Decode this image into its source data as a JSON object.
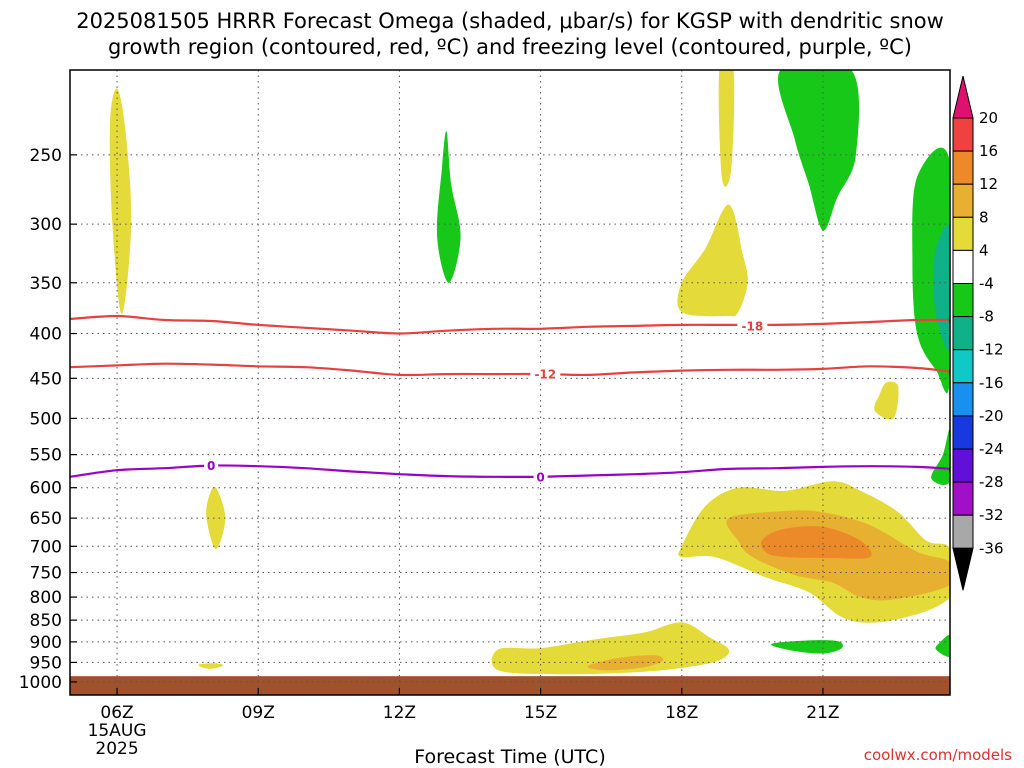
{
  "chart_data": {
    "type": "heatmap",
    "title_line1": "2025081505 HRRR Forecast Omega (shaded, μbar/s) for KGSP with dendritic snow",
    "title_line2": "growth region (contoured, red, ºC) and freezing level (contoured, purple, ºC)",
    "xlabel": "Forecast Time (UTC)",
    "credit": "coolwx.com/models",
    "x_range": [
      5,
      23.7
    ],
    "y_range": [
      200,
      1035
    ],
    "x_ticks": [
      {
        "x": 6,
        "label": "06Z",
        "sub1": "15AUG",
        "sub2": "2025"
      },
      {
        "x": 9,
        "label": "09Z"
      },
      {
        "x": 12,
        "label": "12Z"
      },
      {
        "x": 15,
        "label": "15Z"
      },
      {
        "x": 18,
        "label": "18Z"
      },
      {
        "x": 21,
        "label": "21Z"
      }
    ],
    "y_ticks": [
      {
        "p": 250,
        "label": "250"
      },
      {
        "p": 300,
        "label": "300"
      },
      {
        "p": 350,
        "label": "350"
      },
      {
        "p": 400,
        "label": "400"
      },
      {
        "p": 450,
        "label": "450"
      },
      {
        "p": 500,
        "label": "500"
      },
      {
        "p": 550,
        "label": "550"
      },
      {
        "p": 600,
        "label": "600"
      },
      {
        "p": 650,
        "label": "650"
      },
      {
        "p": 700,
        "label": "700"
      },
      {
        "p": 750,
        "label": "750"
      },
      {
        "p": 800,
        "label": "800"
      },
      {
        "p": 850,
        "label": "850"
      },
      {
        "p": 900,
        "label": "900"
      },
      {
        "p": 950,
        "label": "950"
      },
      {
        "p": 1000,
        "label": "1000"
      }
    ],
    "grid": true,
    "ground_level_p": 985,
    "colors": {
      "ground": "#a0522d",
      "dgz": "#e84040",
      "freezing": "#9a00c8",
      "yellow": "#e4da3a",
      "orange_light": "#e8b030",
      "orange": "#ec8a2a",
      "green": "#18c818"
    },
    "colorbar": {
      "levels": [
        "20",
        "16",
        "12",
        "8",
        "4",
        "-4",
        "-8",
        "-12",
        "-16",
        "-20",
        "-24",
        "-28",
        "-32",
        "-36"
      ],
      "colors": [
        "#e01070",
        "#f04040",
        "#ec8a2a",
        "#e8b030",
        "#e4da3a",
        "#ffffff",
        "#18c818",
        "#10b088",
        "#10c8c8",
        "#1890f0",
        "#1838e0",
        "#6010d8",
        "#a010c8",
        "#a8a8a8",
        "#000000"
      ]
    },
    "contours": [
      {
        "name": "dgz-minus18",
        "label": "-18",
        "color": "#e84040",
        "label_at": [
          19.5,
          392
        ],
        "points": [
          [
            5,
            385
          ],
          [
            6,
            382
          ],
          [
            7,
            386
          ],
          [
            8,
            387
          ],
          [
            9,
            391
          ],
          [
            10,
            394
          ],
          [
            11,
            397
          ],
          [
            12,
            400
          ],
          [
            13,
            397
          ],
          [
            14,
            395
          ],
          [
            15,
            395
          ],
          [
            16,
            393
          ],
          [
            17,
            392
          ],
          [
            18,
            391
          ],
          [
            19,
            391
          ],
          [
            20,
            391
          ],
          [
            21,
            390
          ],
          [
            22,
            388
          ],
          [
            23,
            386
          ],
          [
            23.7,
            386
          ]
        ]
      },
      {
        "name": "dgz-minus12",
        "label": "-12",
        "color": "#e84040",
        "label_at": [
          15.1,
          445
        ],
        "points": [
          [
            5,
            437
          ],
          [
            6,
            435
          ],
          [
            7,
            433
          ],
          [
            8,
            434
          ],
          [
            9,
            436
          ],
          [
            10,
            437
          ],
          [
            11,
            441
          ],
          [
            12,
            446
          ],
          [
            13,
            445
          ],
          [
            14,
            445
          ],
          [
            15,
            445
          ],
          [
            16,
            446
          ],
          [
            17,
            443
          ],
          [
            18,
            441
          ],
          [
            19,
            440
          ],
          [
            20,
            440
          ],
          [
            21,
            439
          ],
          [
            22,
            436
          ],
          [
            23,
            438
          ],
          [
            23.7,
            442
          ]
        ]
      },
      {
        "name": "freezing-level",
        "label": "0",
        "color": "#9a00c8",
        "label_at": [
          [
            8.0,
            566
          ],
          [
            15.0,
            583
          ]
        ],
        "points": [
          [
            5,
            583
          ],
          [
            6,
            573
          ],
          [
            7,
            570
          ],
          [
            8,
            566
          ],
          [
            9,
            567
          ],
          [
            10,
            570
          ],
          [
            11,
            575
          ],
          [
            12,
            579
          ],
          [
            13,
            582
          ],
          [
            14,
            583
          ],
          [
            15,
            583
          ],
          [
            16,
            581
          ],
          [
            17,
            579
          ],
          [
            18,
            576
          ],
          [
            19,
            571
          ],
          [
            20,
            570
          ],
          [
            21,
            568
          ],
          [
            22,
            567
          ],
          [
            23,
            568
          ],
          [
            23.7,
            571
          ]
        ]
      }
    ],
    "shaded_regions": [
      {
        "name": "yellow-upper-06z",
        "value": "4 to 8",
        "fill": "#e4da3a",
        "points": [
          [
            6.0,
            210
          ],
          [
            6.18,
            235
          ],
          [
            6.3,
            300
          ],
          [
            6.1,
            380
          ],
          [
            5.9,
            300
          ],
          [
            5.85,
            230
          ]
        ]
      },
      {
        "name": "green-upper-13z",
        "value": "-4 to -8",
        "fill": "#18c818",
        "points": [
          [
            13.0,
            235
          ],
          [
            13.1,
            270
          ],
          [
            13.3,
            310
          ],
          [
            13.05,
            350
          ],
          [
            12.8,
            310
          ],
          [
            12.9,
            260
          ]
        ]
      },
      {
        "name": "yellow-upper-19z",
        "value": "4 to 8",
        "fill": "#e4da3a",
        "points": [
          [
            18.8,
            200
          ],
          [
            19.1,
            200
          ],
          [
            19.05,
            260
          ],
          [
            18.85,
            265
          ]
        ]
      },
      {
        "name": "yellow-mid-19z",
        "value": "4 to 8",
        "fill": "#e4da3a",
        "points": [
          [
            19.0,
            285
          ],
          [
            19.3,
            325
          ],
          [
            19.4,
            350
          ],
          [
            19.2,
            378
          ],
          [
            18.95,
            382
          ],
          [
            18.0,
            378
          ],
          [
            18.0,
            350
          ],
          [
            18.5,
            320
          ]
        ]
      },
      {
        "name": "green-upper-20z",
        "value": "-4 to -8",
        "fill": "#18c818",
        "points": [
          [
            20.1,
            200
          ],
          [
            21.6,
            200
          ],
          [
            21.7,
            250
          ],
          [
            21.3,
            280
          ],
          [
            21.0,
            305
          ],
          [
            20.7,
            270
          ],
          [
            20.4,
            240
          ]
        ]
      },
      {
        "name": "green-right-edge",
        "value": "-4 to -8",
        "fill": "#18c818",
        "points": [
          [
            23.0,
            265
          ],
          [
            23.7,
            255
          ],
          [
            23.7,
            450
          ],
          [
            23.4,
            440
          ],
          [
            23.0,
            400
          ],
          [
            22.9,
            330
          ]
        ]
      },
      {
        "name": "teal-right-edge",
        "value": "-8 to -12",
        "fill": "#10b088",
        "points": [
          [
            23.4,
            320
          ],
          [
            23.7,
            305
          ],
          [
            23.7,
            410
          ],
          [
            23.5,
            400
          ],
          [
            23.35,
            360
          ]
        ]
      },
      {
        "name": "yellow-500-22z",
        "value": "4 to 8",
        "fill": "#e4da3a",
        "points": [
          [
            22.35,
            455
          ],
          [
            22.6,
            460
          ],
          [
            22.5,
            500
          ],
          [
            22.1,
            490
          ],
          [
            22.2,
            470
          ]
        ]
      },
      {
        "name": "green-mid-right",
        "value": "-4 to -8",
        "fill": "#18c818",
        "points": [
          [
            23.7,
            515
          ],
          [
            23.7,
            590
          ],
          [
            23.3,
            585
          ],
          [
            23.55,
            550
          ]
        ]
      },
      {
        "name": "yellow-650-08z",
        "value": "4 to 8",
        "fill": "#e4da3a",
        "points": [
          [
            8.1,
            600
          ],
          [
            8.3,
            650
          ],
          [
            8.1,
            705
          ],
          [
            7.9,
            650
          ],
          [
            7.95,
            615
          ]
        ]
      },
      {
        "name": "yellow-lowmid-right",
        "value": "4 to 8",
        "fill": "#e4da3a",
        "points": [
          [
            18.0,
            700
          ],
          [
            18.5,
            630
          ],
          [
            19.2,
            600
          ],
          [
            20.2,
            605
          ],
          [
            21.2,
            590
          ],
          [
            21.8,
            605
          ],
          [
            22.6,
            640
          ],
          [
            23.2,
            690
          ],
          [
            23.7,
            705
          ],
          [
            23.7,
            800
          ],
          [
            22.5,
            850
          ],
          [
            21.5,
            848
          ],
          [
            20.7,
            790
          ],
          [
            19.8,
            760
          ],
          [
            18.7,
            720
          ],
          [
            18.0,
            720
          ]
        ]
      },
      {
        "name": "orange-light-lowmid",
        "value": "8 to 12",
        "fill": "#e8b030",
        "points": [
          [
            19.0,
            650
          ],
          [
            20.2,
            638
          ],
          [
            21.0,
            640
          ],
          [
            22.0,
            662
          ],
          [
            23.0,
            710
          ],
          [
            23.7,
            730
          ],
          [
            23.7,
            775
          ],
          [
            22.5,
            805
          ],
          [
            21.8,
            800
          ],
          [
            21.2,
            770
          ],
          [
            20.4,
            755
          ],
          [
            19.5,
            720
          ],
          [
            19.2,
            690
          ]
        ]
      },
      {
        "name": "orange-core",
        "value": "12 to 16",
        "fill": "#ec8a2a",
        "points": [
          [
            19.7,
            690
          ],
          [
            20.1,
            670
          ],
          [
            21.0,
            665
          ],
          [
            21.8,
            690
          ],
          [
            22.0,
            720
          ],
          [
            21.2,
            722
          ],
          [
            20.2,
            720
          ],
          [
            19.8,
            712
          ]
        ]
      },
      {
        "name": "yellow-low-15z",
        "value": "4 to 8",
        "fill": "#e4da3a",
        "points": [
          [
            14.1,
            918
          ],
          [
            15.0,
            915
          ],
          [
            16.1,
            895
          ],
          [
            17.2,
            878
          ],
          [
            18.0,
            855
          ],
          [
            18.6,
            890
          ],
          [
            19.0,
            918
          ],
          [
            18.8,
            945
          ],
          [
            18.1,
            962
          ],
          [
            17.0,
            975
          ],
          [
            15.4,
            980
          ],
          [
            14.1,
            970
          ]
        ]
      },
      {
        "name": "orange-light-low-17z",
        "value": "8 to 12",
        "fill": "#e8b030",
        "points": [
          [
            16.0,
            960
          ],
          [
            16.6,
            940
          ],
          [
            17.4,
            932
          ],
          [
            17.6,
            945
          ],
          [
            17.2,
            962
          ],
          [
            16.4,
            970
          ]
        ]
      },
      {
        "name": "green-900-21z",
        "value": "-4 to -8",
        "fill": "#18c818",
        "points": [
          [
            19.9,
            905
          ],
          [
            20.6,
            897
          ],
          [
            21.3,
            898
          ],
          [
            21.4,
            915
          ],
          [
            21.0,
            928
          ],
          [
            20.3,
            920
          ]
        ]
      },
      {
        "name": "green-low-right",
        "value": "-4 to -8",
        "fill": "#18c818",
        "points": [
          [
            23.7,
            885
          ],
          [
            23.7,
            935
          ],
          [
            23.4,
            918
          ],
          [
            23.5,
            900
          ]
        ]
      },
      {
        "name": "yellow-950-08z",
        "value": "4 to 8",
        "fill": "#e4da3a",
        "points": [
          [
            7.75,
            955
          ],
          [
            8.1,
            952
          ],
          [
            8.25,
            958
          ],
          [
            8.0,
            966
          ],
          [
            7.8,
            962
          ]
        ]
      }
    ]
  }
}
